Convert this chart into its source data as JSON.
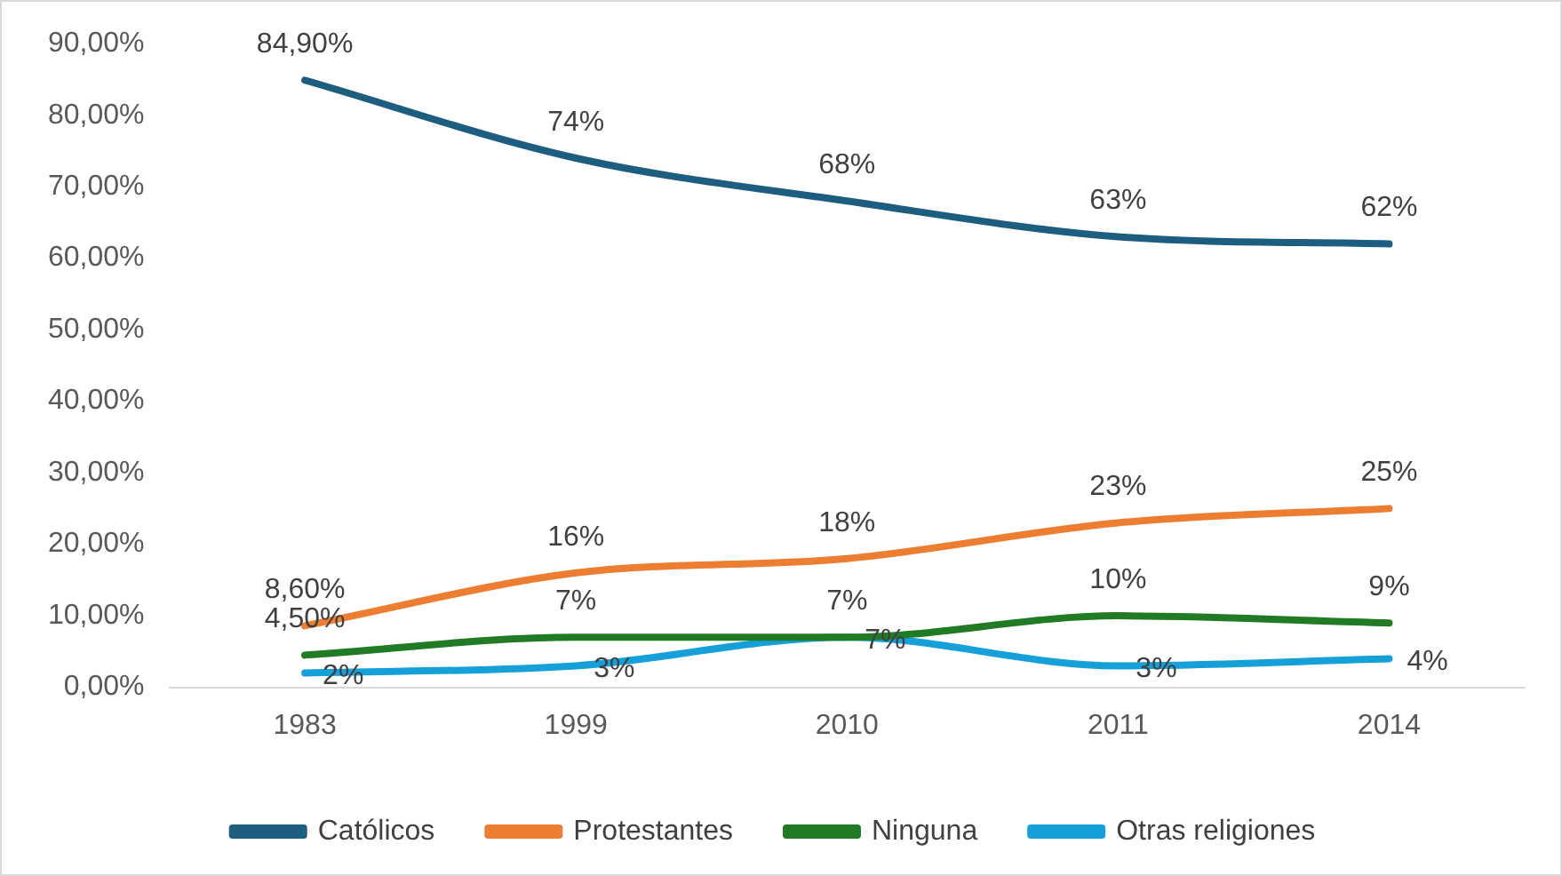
{
  "chart_data": {
    "type": "line",
    "categories": [
      "1983",
      "1999",
      "2010",
      "2011",
      "2014"
    ],
    "series": [
      {
        "name": "Católicos",
        "color": "#1c5d80",
        "values": [
          84.9,
          74,
          68,
          63,
          62
        ],
        "value_labels": [
          "84,90%",
          "74%",
          "68%",
          "63%",
          "62%"
        ]
      },
      {
        "name": "Protestantes",
        "color": "#ed7d31",
        "values": [
          8.6,
          16,
          18,
          23,
          25
        ],
        "value_labels": [
          "8,60%",
          "16%",
          "18%",
          "23%",
          "25%"
        ]
      },
      {
        "name": "Ninguna",
        "color": "#217a24",
        "values": [
          4.5,
          7,
          7,
          10,
          9
        ],
        "value_labels": [
          "4,50%",
          "7%",
          "7%",
          "10%",
          "9%"
        ]
      },
      {
        "name": "Otras religiones",
        "color": "#16a0da",
        "values": [
          2,
          3,
          7,
          3,
          4
        ],
        "value_labels": [
          "2%",
          "3%",
          "7%",
          "3%",
          "4%"
        ]
      }
    ],
    "ylim": [
      0,
      90
    ],
    "yticks": [
      {
        "value": 0,
        "label": "0,00%"
      },
      {
        "value": 10,
        "label": "10,00%"
      },
      {
        "value": 20,
        "label": "20,00%"
      },
      {
        "value": 30,
        "label": "30,00%"
      },
      {
        "value": 40,
        "label": "40,00%"
      },
      {
        "value": 50,
        "label": "50,00%"
      },
      {
        "value": 60,
        "label": "60,00%"
      },
      {
        "value": 70,
        "label": "70,00%"
      },
      {
        "value": 80,
        "label": "80,00%"
      },
      {
        "value": 90,
        "label": "90,00%"
      }
    ],
    "grid": false,
    "legend": "bottom",
    "marker": "none",
    "line_style": "solid"
  }
}
